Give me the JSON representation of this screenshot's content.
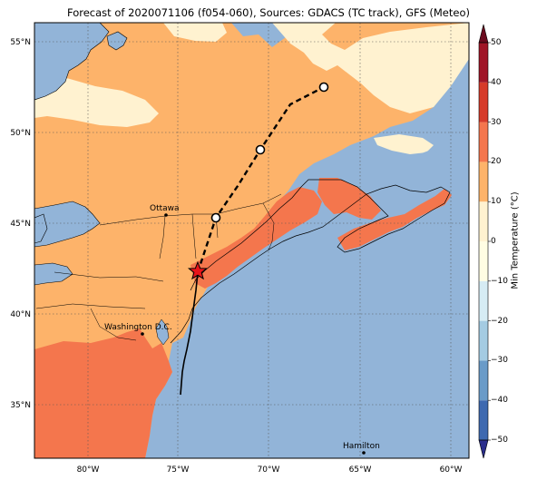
{
  "title": "Forecast of 2020071106 (f054-060), Sources: GDACS (TC track), GFS (Meteo)",
  "map": {
    "lat_ticks": [
      "55°N",
      "50°N",
      "45°N",
      "40°N",
      "35°N"
    ],
    "lon_ticks": [
      "80°W",
      "75°W",
      "70°W",
      "65°W",
      "60°W"
    ],
    "cities": [
      "Ottawa",
      "Washington D.C.",
      "Hamilton"
    ],
    "colors": {
      "ocean_cold": "#92b4d8",
      "band_0_10": "#fff2d0",
      "band_10_20": "#fdb36a",
      "band_20_30": "#f4764d",
      "track": "#000000",
      "current_position_marker": "#e8141a"
    }
  },
  "colorbar": {
    "label": "Min Temperature (°C)",
    "ticks": [
      "50",
      "40",
      "30",
      "20",
      "10",
      "0",
      "−10",
      "−20",
      "−30",
      "−40",
      "−50"
    ],
    "colors": [
      "#2b2e8c",
      "#3e69b0",
      "#6a9bc8",
      "#a4cbe2",
      "#d6ecf4",
      "#fffde3",
      "#fff2d0",
      "#fdb36a",
      "#f4764d",
      "#d63b2a",
      "#a01527",
      "#6b0a1e"
    ]
  }
}
